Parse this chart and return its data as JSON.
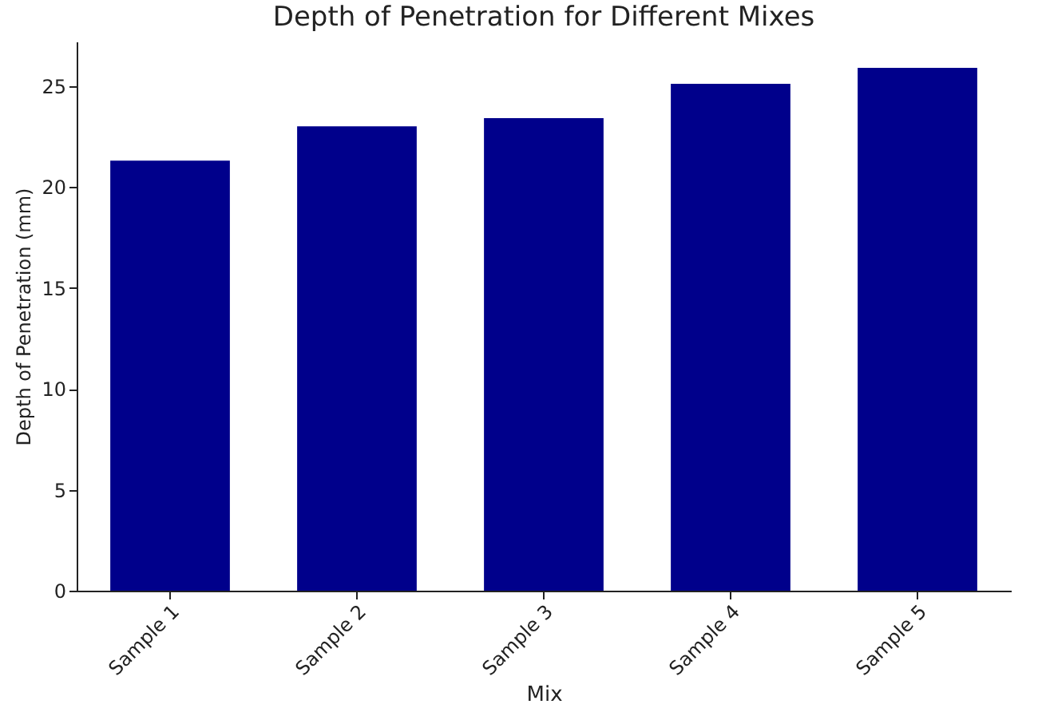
{
  "chart_data": {
    "type": "bar",
    "title": "Depth of Penetration for Different Mixes",
    "xlabel": "Mix",
    "ylabel": "Depth of Penetration (mm)",
    "categories": [
      "Sample 1",
      "Sample 2",
      "Sample 3",
      "Sample 4",
      "Sample 5"
    ],
    "values": [
      21.3,
      23.0,
      23.4,
      25.1,
      25.9
    ],
    "color": "#00008b",
    "ylim": [
      0,
      27.2
    ],
    "yticks": [
      0,
      5,
      10,
      15,
      20,
      25
    ],
    "grid": false
  }
}
